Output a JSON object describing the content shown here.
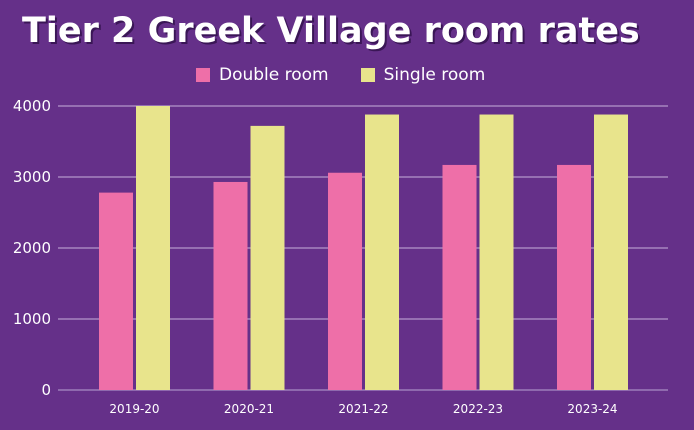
{
  "chart_data": {
    "type": "bar",
    "title": "Tier 2 Greek Village room rates",
    "categories": [
      "2019-20",
      "2020-21",
      "2021-22",
      "2022-23",
      "2023-24"
    ],
    "series": [
      {
        "name": "Double room",
        "color": "#ee6fa8",
        "values": [
          2780,
          2930,
          3060,
          3170,
          3170
        ]
      },
      {
        "name": "Single room",
        "color": "#e8e48c",
        "values": [
          4000,
          3720,
          3880,
          3880,
          3880
        ]
      }
    ],
    "yticks": [
      0,
      1000,
      2000,
      3000,
      4000
    ],
    "ylim": [
      0,
      4000
    ],
    "grid": true,
    "legend_position": "top-center",
    "colors": {
      "background": "#653089",
      "gridline": "#c8b0dc",
      "axis": "#a98cc4",
      "text": "#ffffff"
    }
  }
}
